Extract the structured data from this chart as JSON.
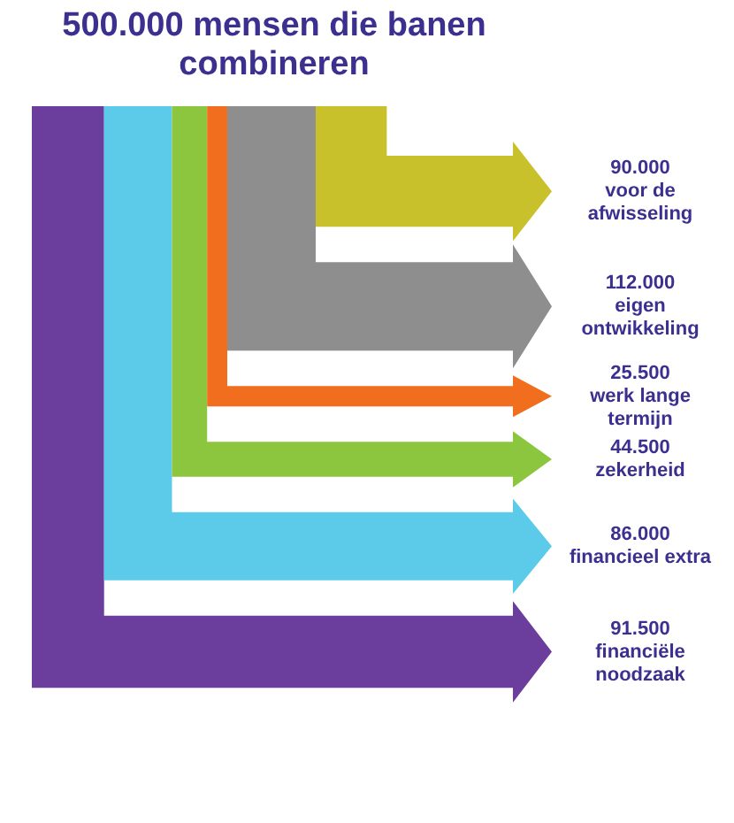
{
  "chart_data": {
    "type": "other",
    "title": "500.000 mensen die banen combineren",
    "categories": [
      "voor de afwisseling",
      "eigen ontwikkeling",
      "werk lange termijn",
      "zekerheid",
      "financieel extra",
      "financiële noodzaak"
    ],
    "values": [
      90000,
      112000,
      25500,
      44500,
      86000,
      91500
    ],
    "value_labels": [
      "90.000",
      "112.000",
      "25.500",
      "44.500",
      "86.000",
      "91.500"
    ],
    "colors": [
      "#c9c12c",
      "#8e8e8e",
      "#f06e1e",
      "#8cc63e",
      "#5ccbea",
      "#6b3d9c"
    ]
  }
}
